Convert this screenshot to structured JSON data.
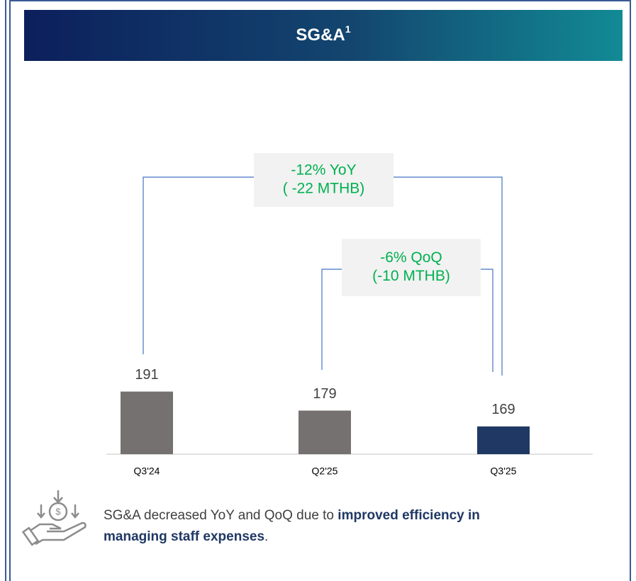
{
  "chart_data": {
    "type": "bar",
    "title": "SG&A",
    "title_superscript": "1",
    "categories": [
      "Q3'24",
      "Q2'25",
      "Q3'25"
    ],
    "values": [
      191,
      179,
      169
    ],
    "colors": [
      "#767171",
      "#767171",
      "#203864"
    ],
    "ylim": [
      151.5,
      240
    ],
    "annotations": [
      {
        "lines": [
          "-12% YoY",
          "( -22 MTHB)"
        ],
        "color": "#00b050"
      },
      {
        "lines": [
          "-6% QoQ",
          "(-10 MTHB)"
        ],
        "color": "#00b050"
      }
    ],
    "footnote": [
      [
        {
          "text": "SG&A decreased YoY and QoQ due to ",
          "bold": false
        },
        {
          "text": "improved efficiency in",
          "bold": true
        }
      ],
      [
        {
          "text": "managing staff expenses",
          "bold": true
        },
        {
          "text": ".",
          "bold": false
        }
      ]
    ]
  }
}
